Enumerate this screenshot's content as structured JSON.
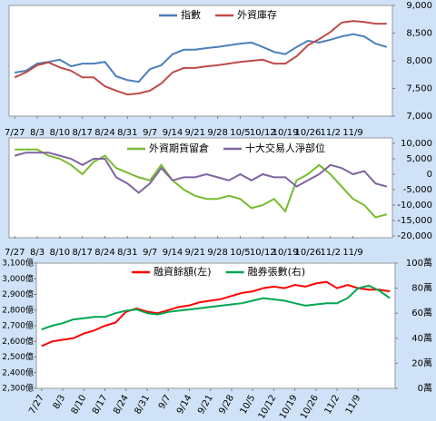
{
  "chart_data": [
    {
      "type": "line",
      "legend": "top",
      "categories": [
        "7/27",
        null,
        "8/3",
        null,
        "8/10",
        null,
        "8/17",
        null,
        "8/24",
        null,
        "8/31",
        null,
        "9/7",
        null,
        "9/14",
        null,
        "9/21",
        null,
        "9/28",
        null,
        "10/5",
        null,
        "10/12",
        null,
        "10/19",
        null,
        "10/26",
        null,
        "11/2",
        null,
        "11/9",
        null,
        null,
        null
      ],
      "y2lim": [
        7000,
        9000
      ],
      "y2ticks": [
        {
          "value": 7000,
          "label": "7,000"
        },
        {
          "value": 7500,
          "label": "7,500"
        },
        {
          "value": 8000,
          "label": "8,000"
        },
        {
          "value": 8500,
          "label": "8,500"
        },
        {
          "value": 9000,
          "label": "9,000"
        }
      ],
      "series": [
        {
          "name": "指數",
          "color": "#4a7ebb",
          "axis": "y2",
          "values": [
            7787,
            7820,
            7950,
            7980,
            8020,
            7900,
            7950,
            7950,
            7980,
            7720,
            7650,
            7620,
            7850,
            7920,
            8120,
            8200,
            8200,
            8230,
            8250,
            8280,
            8310,
            8330,
            8250,
            8160,
            8120,
            8250,
            8360,
            8330,
            8380,
            8440,
            8480,
            8440,
            8310,
            8250
          ]
        },
        {
          "name": "外資庫存",
          "color": "#be4b48",
          "axis": "y2",
          "values": [
            7700,
            7790,
            7920,
            7970,
            7880,
            7820,
            7700,
            7700,
            7540,
            7460,
            7390,
            7410,
            7460,
            7590,
            7790,
            7870,
            7870,
            7900,
            7920,
            7950,
            7980,
            8000,
            8020,
            7950,
            7950,
            8080,
            8280,
            8390,
            8520,
            8690,
            8720,
            8700,
            8670,
            8670
          ]
        }
      ]
    },
    {
      "type": "line",
      "legend": "top",
      "categories": [
        "7/27",
        null,
        "8/3",
        null,
        "8/10",
        null,
        "8/17",
        null,
        "8/24",
        null,
        "8/31",
        null,
        "9/7",
        null,
        "9/14",
        null,
        "9/21",
        null,
        "9/28",
        null,
        "10/5",
        null,
        "10/12",
        null,
        "10/19",
        null,
        "10/26",
        null,
        "11/2",
        null,
        "11/9",
        null,
        null,
        null
      ],
      "y2lim": [
        -20000,
        10000
      ],
      "y2ticks": [
        {
          "value": -20000,
          "label": "-20,000"
        },
        {
          "value": -15000,
          "label": "-15,000"
        },
        {
          "value": -10000,
          "label": "-10,000"
        },
        {
          "value": -5000,
          "label": "-5,000"
        },
        0,
        {
          "value": 5000,
          "label": "5,000"
        },
        {
          "value": 10000,
          "label": "10,000"
        }
      ],
      "series": [
        {
          "name": "外資期貨留倉",
          "color": "#77bb30",
          "axis": "y2",
          "values": [
            8000,
            8000,
            8000,
            6000,
            5000,
            3000,
            0,
            4000,
            6000,
            2000,
            500,
            -1000,
            -2000,
            3000,
            -2000,
            -5000,
            -7000,
            -8000,
            -8000,
            -7000,
            -8000,
            -11000,
            -10000,
            -8000,
            -12000,
            -2000,
            0,
            3000,
            0,
            -4000,
            -8000,
            -10000,
            -14000,
            -13000
          ]
        },
        {
          "name": "十大交易人淨部位",
          "color": "#7f64a0",
          "axis": "y2",
          "values": [
            6000,
            7000,
            7000,
            7000,
            6000,
            5000,
            3000,
            5000,
            5000,
            -1000,
            -3000,
            -6000,
            -3000,
            2000,
            -2000,
            -1000,
            -1000,
            0,
            -1000,
            -2000,
            0,
            -2000,
            0,
            -1000,
            -1000,
            -4000,
            -2000,
            0,
            3000,
            2000,
            0,
            1000,
            -3000,
            -4000
          ]
        }
      ]
    },
    {
      "type": "line",
      "legend": "top",
      "categories": [
        "7/27",
        null,
        "8/3",
        null,
        "8/10",
        null,
        "8/17",
        null,
        "8/24",
        null,
        "8/31",
        null,
        "9/7",
        null,
        "9/14",
        null,
        "9/21",
        null,
        "9/28",
        null,
        "10/5",
        null,
        "10/12",
        null,
        "10/19",
        null,
        "10/26",
        null,
        "11/2",
        null,
        "11/9",
        null,
        null,
        null
      ],
      "ylim": [
        2300,
        3100
      ],
      "yticks": [
        {
          "value": 2300,
          "label": "2,300億"
        },
        {
          "value": 2400,
          "label": "2,400億"
        },
        {
          "value": 2500,
          "label": "2,500億"
        },
        {
          "value": 2600,
          "label": "2,600億"
        },
        {
          "value": 2700,
          "label": "2,700億"
        },
        {
          "value": 2800,
          "label": "2,800億"
        },
        {
          "value": 2900,
          "label": "2,900億"
        },
        {
          "value": 3000,
          "label": "3,000億"
        },
        {
          "value": 3100,
          "label": "3,100億"
        }
      ],
      "y2lim": [
        0,
        100
      ],
      "y2ticks": [
        {
          "value": 0,
          "label": "0萬"
        },
        {
          "value": 20,
          "label": "20萬"
        },
        {
          "value": 40,
          "label": "40萬"
        },
        {
          "value": 60,
          "label": "60萬"
        },
        {
          "value": 80,
          "label": "80萬"
        },
        {
          "value": 100,
          "label": "100萬"
        }
      ],
      "series": [
        {
          "name": "融資餘額(左)",
          "color": "#ff0000",
          "values": [
            2570,
            2600,
            2610,
            2620,
            2650,
            2670,
            2700,
            2720,
            2790,
            2810,
            2790,
            2780,
            2800,
            2820,
            2830,
            2850,
            2860,
            2870,
            2890,
            2910,
            2920,
            2940,
            2950,
            2940,
            2960,
            2950,
            2970,
            2980,
            2940,
            2960,
            2940,
            2930,
            2930,
            2920
          ]
        },
        {
          "name": "融券張數(右)",
          "color": "#00a651",
          "axis": "y2",
          "values": [
            47,
            50,
            52,
            55,
            56,
            57,
            57,
            60,
            62,
            63,
            60,
            59,
            61,
            62,
            63,
            64,
            65,
            66,
            67,
            68,
            70,
            72,
            71,
            70,
            68,
            66,
            67,
            68,
            68,
            72,
            80,
            82,
            78,
            72
          ]
        }
      ]
    }
  ]
}
